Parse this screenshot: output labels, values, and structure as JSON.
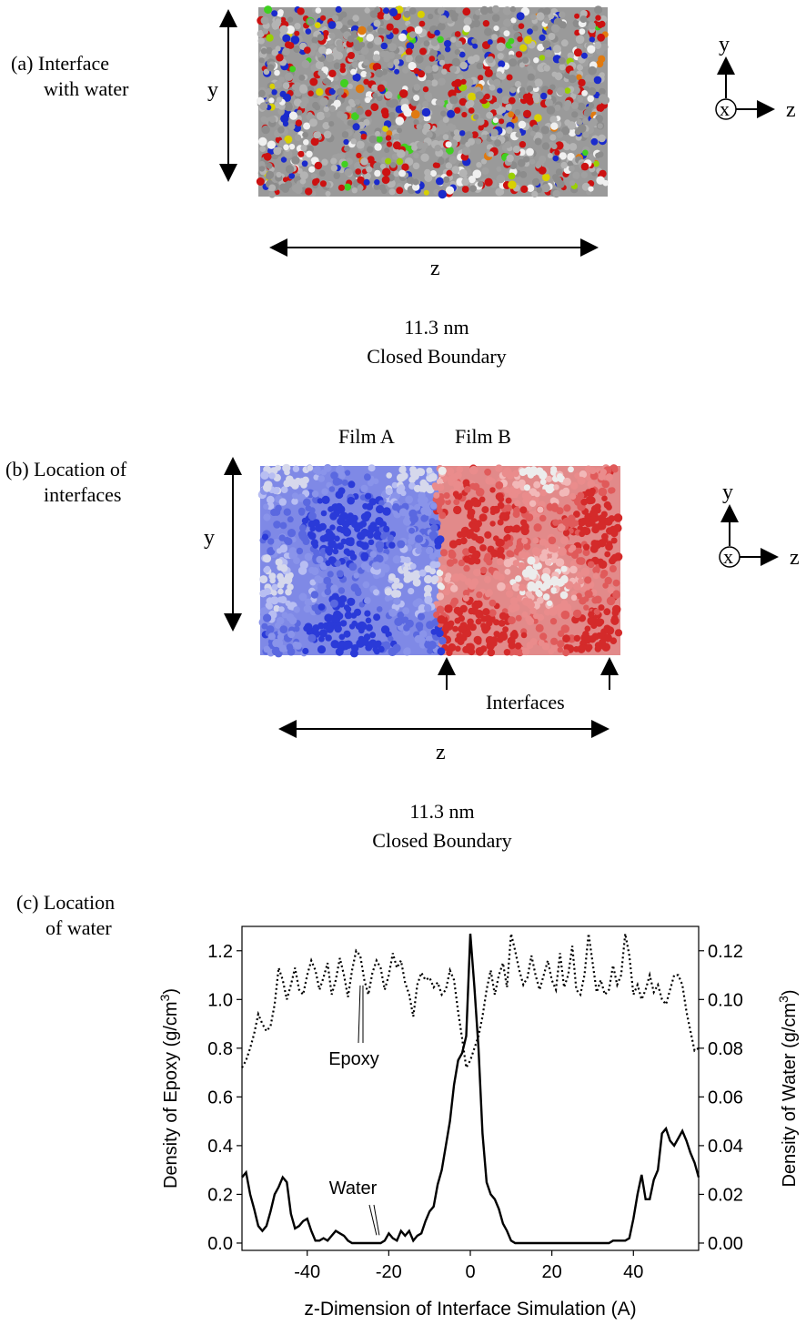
{
  "panel_a": {
    "label_line1": "(a) Interface",
    "label_line2": "with water",
    "y_axis": "y",
    "z_axis": "z",
    "caption_line1": "11.3 nm",
    "caption_line2": "Closed Boundary",
    "orientation": {
      "y": "y",
      "x": "x",
      "z": "z"
    },
    "atom_colors": [
      "#8c8c8c",
      "#a0a0a0",
      "#b4b4b4",
      "#cc1111",
      "#1a2acc",
      "#f0f0f0",
      "#e07a10",
      "#9ad000",
      "#40d020",
      "#d8d000"
    ]
  },
  "panel_b": {
    "label_line1": "(b) Location of",
    "label_line2": "interfaces",
    "film_a": "Film A",
    "film_b": "Film B",
    "y_axis": "y",
    "z_axis": "z",
    "interfaces_label": "Interfaces",
    "caption_line1": "11.3 nm",
    "caption_line2": "Closed Boundary",
    "orientation": {
      "y": "y",
      "x": "x",
      "z": "z"
    },
    "film_a_colors": [
      "#2a3ad8",
      "#5a68e0",
      "#8a94ea",
      "#b8bef2",
      "#d6d8ec"
    ],
    "film_b_colors": [
      "#d42a2a",
      "#e05a5a",
      "#ea8c8c",
      "#f2b8b8",
      "#ececec"
    ]
  },
  "panel_c": {
    "label_line1": "(c) Location",
    "label_line2": "of water"
  },
  "chart_data": {
    "type": "line",
    "xlabel": "z-Dimension of Interface Simulation (A)",
    "ylabel_left": "Density of Epoxy (g/cm3)",
    "ylabel_right": "Density of Water (g/cm3)",
    "xlim": [
      -56,
      56
    ],
    "ylim_left": [
      -0.03,
      1.3
    ],
    "ylim_right": [
      -0.003,
      0.13
    ],
    "x_ticks": [
      -40,
      -20,
      0,
      20,
      40
    ],
    "y_left_ticks": [
      "0.0",
      "0.2",
      "0.4",
      "0.6",
      "0.8",
      "1.0",
      "1.2"
    ],
    "y_right_ticks": [
      "0.00",
      "0.02",
      "0.04",
      "0.06",
      "0.08",
      "0.10",
      "0.12"
    ],
    "annotations": [
      {
        "text": "Epoxy",
        "points_to": [
          -27,
          1.08
        ]
      },
      {
        "text": "Water",
        "points_to": [
          -23,
          0.01
        ]
      }
    ],
    "series": [
      {
        "name": "Epoxy",
        "axis": "left",
        "style": "dotted",
        "x": [
          -56,
          -55,
          -54,
          -53,
          -52,
          -51,
          -50,
          -49,
          -48,
          -47,
          -46,
          -45,
          -44,
          -43,
          -42,
          -41,
          -40,
          -39,
          -38,
          -37,
          -36,
          -35,
          -34,
          -33,
          -32,
          -31,
          -30,
          -29,
          -28,
          -27,
          -26,
          -25,
          -24,
          -23,
          -22,
          -21,
          -20,
          -19,
          -18,
          -17,
          -16,
          -15,
          -14,
          -13,
          -12,
          -11,
          -10,
          -9,
          -8,
          -7,
          -6,
          -5,
          -4,
          -3,
          -2,
          -1,
          0,
          1,
          2,
          3,
          4,
          5,
          6,
          7,
          8,
          9,
          10,
          11,
          12,
          13,
          14,
          15,
          16,
          17,
          18,
          19,
          20,
          21,
          22,
          23,
          24,
          25,
          26,
          27,
          28,
          29,
          30,
          31,
          32,
          33,
          34,
          35,
          36,
          37,
          38,
          39,
          40,
          41,
          42,
          43,
          44,
          45,
          46,
          47,
          48,
          49,
          50,
          51,
          52,
          53,
          54,
          55,
          56
        ],
        "y": [
          0.72,
          0.75,
          0.8,
          0.86,
          0.94,
          0.9,
          0.87,
          0.89,
          0.98,
          1.13,
          1.08,
          1.0,
          1.06,
          1.13,
          1.04,
          1.02,
          1.1,
          1.16,
          1.12,
          1.04,
          1.09,
          1.15,
          1.02,
          1.08,
          1.17,
          1.1,
          1.01,
          1.12,
          1.2,
          1.18,
          1.08,
          1.02,
          1.11,
          1.16,
          1.13,
          1.04,
          1.1,
          1.19,
          1.13,
          1.16,
          1.07,
          1.02,
          0.93,
          1.06,
          1.11,
          1.08,
          1.09,
          1.05,
          1.07,
          1.02,
          1.04,
          1.12,
          1.08,
          0.95,
          0.84,
          0.72,
          0.75,
          0.8,
          0.85,
          0.93,
          1.04,
          1.12,
          1.02,
          1.1,
          1.15,
          1.05,
          1.27,
          1.2,
          1.12,
          1.06,
          1.09,
          1.18,
          1.1,
          1.04,
          1.1,
          1.16,
          1.08,
          1.04,
          1.19,
          1.05,
          1.1,
          1.22,
          1.04,
          1.02,
          1.1,
          1.27,
          1.15,
          1.03,
          1.08,
          1.02,
          1.04,
          1.14,
          1.06,
          1.1,
          1.27,
          1.18,
          1.02,
          1.06,
          1.0,
          1.04,
          1.1,
          1.03,
          1.06,
          1.0,
          0.98,
          1.04,
          1.1,
          1.1,
          1.06,
          0.95,
          0.87,
          0.79,
          0.8
        ]
      },
      {
        "name": "Water",
        "axis": "right",
        "style": "solid",
        "x": [
          -56,
          -55,
          -54,
          -53,
          -52,
          -51,
          -50,
          -49,
          -48,
          -47,
          -46,
          -45,
          -44,
          -43,
          -42,
          -41,
          -40,
          -39,
          -38,
          -37,
          -36,
          -35,
          -34,
          -33,
          -32,
          -31,
          -30,
          -29,
          -28,
          -27,
          -26,
          -25,
          -24,
          -23,
          -22,
          -21,
          -20,
          -19,
          -18,
          -17,
          -16,
          -15,
          -14,
          -13,
          -12,
          -11,
          -10,
          -9,
          -8,
          -7,
          -6,
          -5,
          -4,
          -3,
          -2,
          -1,
          0,
          1,
          2,
          3,
          4,
          5,
          6,
          7,
          8,
          9,
          10,
          11,
          12,
          13,
          14,
          15,
          16,
          17,
          18,
          19,
          20,
          21,
          22,
          23,
          24,
          25,
          26,
          27,
          28,
          29,
          30,
          31,
          32,
          33,
          34,
          35,
          36,
          37,
          38,
          39,
          40,
          41,
          42,
          43,
          44,
          45,
          46,
          47,
          48,
          49,
          50,
          51,
          52,
          53,
          54,
          55,
          56
        ],
        "y": [
          0.027,
          0.029,
          0.02,
          0.014,
          0.007,
          0.005,
          0.007,
          0.013,
          0.02,
          0.023,
          0.027,
          0.025,
          0.012,
          0.006,
          0.007,
          0.009,
          0.01,
          0.005,
          0.001,
          0.001,
          0.002,
          0.001,
          0.003,
          0.005,
          0.004,
          0.003,
          0.001,
          0.0,
          0.0,
          0.0,
          0.0,
          0.0,
          0.0,
          0.0,
          0.0,
          0.001,
          0.004,
          0.002,
          0.001,
          0.005,
          0.003,
          0.005,
          0.001,
          0.003,
          0.004,
          0.009,
          0.013,
          0.015,
          0.024,
          0.03,
          0.04,
          0.05,
          0.065,
          0.075,
          0.078,
          0.085,
          0.127,
          0.105,
          0.08,
          0.045,
          0.025,
          0.02,
          0.018,
          0.014,
          0.008,
          0.005,
          0.001,
          0.0,
          0.0,
          0.0,
          0.0,
          0.0,
          0.0,
          0.0,
          0.0,
          0.0,
          0.0,
          0.0,
          0.0,
          0.0,
          0.0,
          0.0,
          0.0,
          0.0,
          0.0,
          0.0,
          0.0,
          0.0,
          0.0,
          0.0,
          0.0,
          0.001,
          0.001,
          0.001,
          0.001,
          0.002,
          0.01,
          0.02,
          0.028,
          0.018,
          0.018,
          0.026,
          0.03,
          0.045,
          0.047,
          0.042,
          0.04,
          0.043,
          0.046,
          0.042,
          0.037,
          0.033,
          0.027
        ]
      }
    ]
  }
}
